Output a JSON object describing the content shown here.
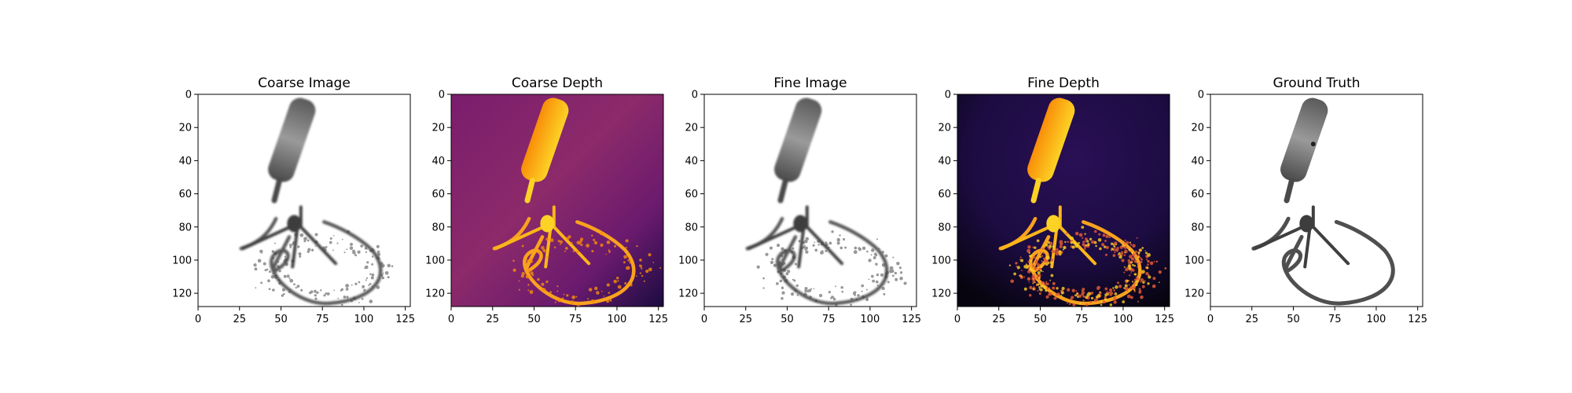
{
  "chart_data": [
    {
      "type": "heatmap",
      "title": "Coarse Image",
      "style": "rgb-noisy",
      "xticks": [
        0,
        25,
        50,
        75,
        100,
        125
      ],
      "yticks": [
        0,
        20,
        40,
        60,
        80,
        100,
        120
      ],
      "xlim": [
        0,
        128
      ],
      "ylim": [
        128,
        0
      ]
    },
    {
      "type": "heatmap",
      "title": "Coarse Depth",
      "style": "inferno-depth",
      "colormap": "inferno",
      "xticks": [
        0,
        25,
        50,
        75,
        100,
        125
      ],
      "yticks": [
        0,
        20,
        40,
        60,
        80,
        100,
        120
      ],
      "xlim": [
        0,
        128
      ],
      "ylim": [
        128,
        0
      ]
    },
    {
      "type": "heatmap",
      "title": "Fine Image",
      "style": "rgb-noisy",
      "xticks": [
        0,
        25,
        50,
        75,
        100,
        125
      ],
      "yticks": [
        0,
        20,
        40,
        60,
        80,
        100,
        120
      ],
      "xlim": [
        0,
        128
      ],
      "ylim": [
        128,
        0
      ]
    },
    {
      "type": "heatmap",
      "title": "Fine Depth",
      "style": "inferno-depth-dark",
      "colormap": "inferno",
      "xticks": [
        0,
        25,
        50,
        75,
        100,
        125
      ],
      "yticks": [
        0,
        20,
        40,
        60,
        80,
        100,
        120
      ],
      "xlim": [
        0,
        128
      ],
      "ylim": [
        128,
        0
      ]
    },
    {
      "type": "heatmap",
      "title": "Ground Truth",
      "style": "rgb-clean",
      "xticks": [
        0,
        25,
        50,
        75,
        100,
        125
      ],
      "yticks": [
        0,
        20,
        40,
        60,
        80,
        100,
        120
      ],
      "xlim": [
        0,
        128
      ],
      "ylim": [
        128,
        0
      ]
    }
  ],
  "colors": {
    "depth_far": "#4b0c6b",
    "depth_mid": "#b52f5c",
    "depth_near": "#f98e09",
    "depth_hot": "#fcd225",
    "mic_gray": "#6d6d6d",
    "mic_dark": "#3a3a3a"
  }
}
